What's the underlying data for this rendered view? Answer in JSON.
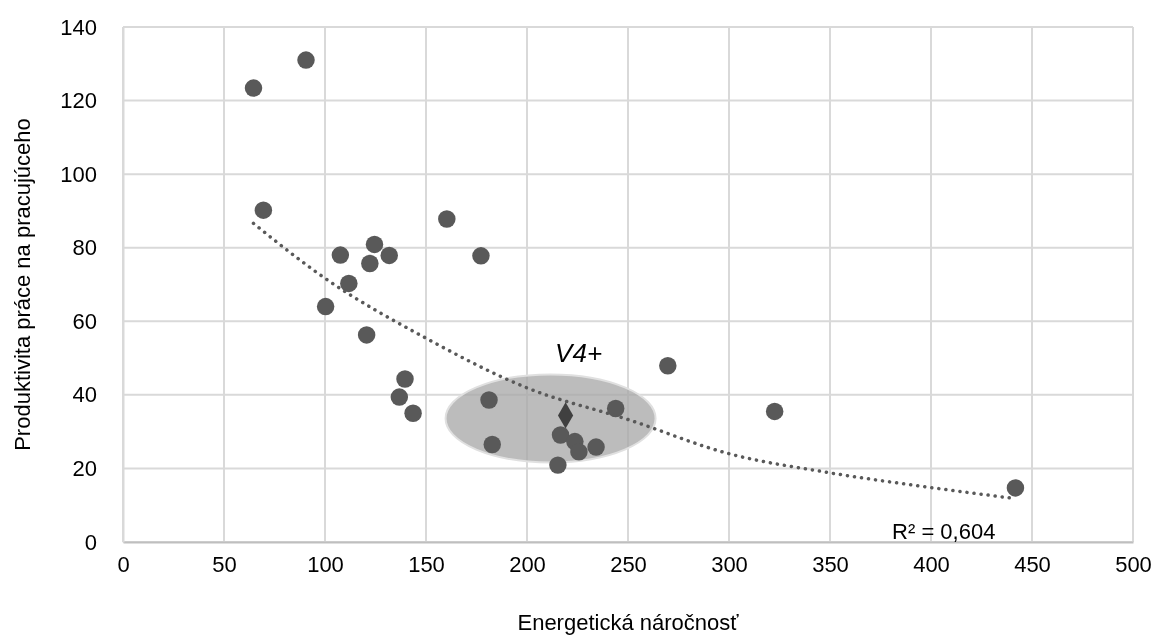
{
  "chart_data": {
    "type": "scatter",
    "xlabel": "Energetická náročnosť",
    "ylabel": "Produktivita práce na pracujúceho",
    "xlim": [
      0,
      500
    ],
    "xticks": [
      0,
      50,
      100,
      150,
      200,
      250,
      300,
      350,
      400,
      450,
      500
    ],
    "ylim": [
      0,
      140
    ],
    "yticks": [
      0,
      20,
      40,
      60,
      80,
      100,
      120,
      140
    ],
    "grid": true,
    "marker": "circle",
    "series": [
      {
        "color": "#595959",
        "x": [
          64.6,
          90.6,
          69.5,
          160.3,
          107.6,
          124.5,
          131.8,
          122.2,
          177.2,
          111.8,
          100.3,
          120.6,
          139.6,
          136.8,
          143.6,
          181.2,
          182.8,
          216.6,
          223.7,
          225.7,
          234.2,
          243.9,
          215.3,
          269.7,
          322.6,
          441.8
        ],
        "values": [
          123.4,
          131,
          90.2,
          87.8,
          78,
          80.9,
          77.9,
          75.7,
          77.8,
          70.3,
          64,
          56.3,
          44.3,
          39.4,
          35,
          38.6,
          26.5,
          29.1,
          27.3,
          24.5,
          25.8,
          36.3,
          20.9,
          47.9,
          35.5,
          14.7
        ]
      },
      {
        "color": "#404040",
        "marker": "diamond",
        "x": [
          219.1
        ],
        "values": [
          34.4
        ]
      },
      {
        "type": "line",
        "color": "#595959",
        "line_style": "dotted",
        "marker": "none",
        "x": [
          64.6,
          100,
          150,
          200,
          250,
          300,
          350,
          400,
          441.8
        ],
        "values": [
          86.6,
          71.7,
          55.4,
          41.9,
          33.3,
          24,
          18.8,
          14.8,
          11.8
        ]
      }
    ],
    "annotations": [
      "V4+",
      "R² = 0,604"
    ]
  }
}
